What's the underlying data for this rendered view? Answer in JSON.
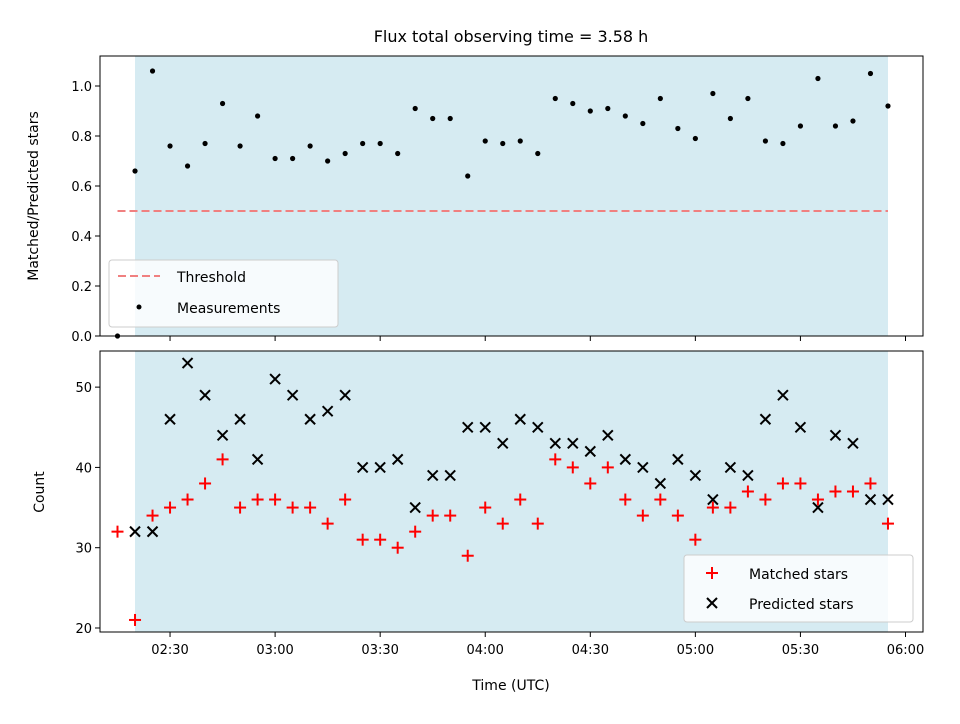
{
  "chart_data": [
    {
      "type": "scatter",
      "title": "Flux total observing time = 3.58 h",
      "xlabel": "",
      "ylabel": "Matched/Predicted stars",
      "ylim": [
        0,
        1.12
      ],
      "yticks": [
        "0.0",
        "0.2",
        "0.4",
        "0.6",
        "0.8",
        "1.0"
      ],
      "ytick_values": [
        0,
        0.2,
        0.4,
        0.6,
        0.8,
        1.0
      ],
      "shaded_x_range": [
        "02:20",
        "05:55"
      ],
      "threshold": {
        "name": "Threshold",
        "value": 0.5,
        "x_range": [
          "02:15",
          "05:55"
        ],
        "color": "#f08080",
        "style": "dashed"
      },
      "series": [
        {
          "name": "Measurements",
          "color": "#000000",
          "marker": "dot",
          "x": [
            "02:15",
            "02:20",
            "02:25",
            "02:30",
            "02:35",
            "02:40",
            "02:45",
            "02:50",
            "02:55",
            "03:00",
            "03:05",
            "03:10",
            "03:15",
            "03:20",
            "03:25",
            "03:30",
            "03:35",
            "03:40",
            "03:45",
            "03:50",
            "03:55",
            "04:00",
            "04:05",
            "04:10",
            "04:15",
            "04:20",
            "04:25",
            "04:30",
            "04:35",
            "04:40",
            "04:45",
            "04:50",
            "04:55",
            "05:00",
            "05:05",
            "05:10",
            "05:15",
            "05:20",
            "05:25",
            "05:30",
            "05:35",
            "05:40",
            "05:45",
            "05:50",
            "05:55"
          ],
          "y": [
            0.0,
            0.66,
            1.06,
            0.76,
            0.68,
            0.77,
            0.93,
            0.76,
            0.88,
            0.71,
            0.71,
            0.76,
            0.7,
            0.73,
            0.77,
            0.77,
            0.73,
            0.91,
            0.87,
            0.87,
            0.64,
            0.78,
            0.77,
            0.78,
            0.73,
            0.95,
            0.93,
            0.9,
            0.91,
            0.88,
            0.85,
            0.95,
            0.83,
            0.79,
            0.97,
            0.87,
            0.95,
            0.78,
            0.77,
            0.84,
            1.03,
            0.84,
            0.86,
            1.05,
            0.92
          ]
        }
      ],
      "legend": {
        "placement": "lower-left",
        "entries": [
          "Threshold",
          "Measurements"
        ]
      }
    },
    {
      "type": "scatter",
      "title": "",
      "xlabel": "Time (UTC)",
      "ylabel": "Count",
      "ylim": [
        19.5,
        54.5
      ],
      "yticks": [
        "20",
        "30",
        "40",
        "50"
      ],
      "ytick_values": [
        20,
        30,
        40,
        50
      ],
      "xlim": [
        "02:10",
        "06:05"
      ],
      "xticks": [
        "02:30",
        "03:00",
        "03:30",
        "04:00",
        "04:30",
        "05:00",
        "05:30",
        "06:00"
      ],
      "shaded_x_range": [
        "02:20",
        "05:55"
      ],
      "series": [
        {
          "name": "Matched stars",
          "color": "#ff0000",
          "marker": "plus",
          "x": [
            "02:15",
            "02:20",
            "02:25",
            "02:30",
            "02:35",
            "02:40",
            "02:45",
            "02:50",
            "02:55",
            "03:00",
            "03:05",
            "03:10",
            "03:15",
            "03:20",
            "03:25",
            "03:30",
            "03:35",
            "03:40",
            "03:45",
            "03:50",
            "03:55",
            "04:00",
            "04:05",
            "04:10",
            "04:15",
            "04:20",
            "04:25",
            "04:30",
            "04:35",
            "04:40",
            "04:45",
            "04:50",
            "04:55",
            "05:00",
            "05:05",
            "05:10",
            "05:15",
            "05:20",
            "05:25",
            "05:30",
            "05:35",
            "05:40",
            "05:45",
            "05:50",
            "05:55"
          ],
          "y": [
            32,
            21,
            34,
            35,
            36,
            38,
            41,
            35,
            36,
            36,
            35,
            35,
            33,
            36,
            31,
            31,
            30,
            32,
            34,
            34,
            29,
            35,
            33,
            36,
            33,
            41,
            40,
            38,
            40,
            36,
            34,
            36,
            34,
            31,
            35,
            35,
            37,
            36,
            38,
            38,
            36,
            37,
            37,
            38,
            33
          ]
        },
        {
          "name": "Predicted stars",
          "color": "#000000",
          "marker": "x",
          "x": [
            "02:20",
            "02:25",
            "02:30",
            "02:35",
            "02:40",
            "02:45",
            "02:50",
            "02:55",
            "03:00",
            "03:05",
            "03:10",
            "03:15",
            "03:20",
            "03:25",
            "03:30",
            "03:35",
            "03:40",
            "03:45",
            "03:50",
            "03:55",
            "04:00",
            "04:05",
            "04:10",
            "04:15",
            "04:20",
            "04:25",
            "04:30",
            "04:35",
            "04:40",
            "04:45",
            "04:50",
            "04:55",
            "05:00",
            "05:05",
            "05:10",
            "05:15",
            "05:20",
            "05:25",
            "05:30",
            "05:35",
            "05:40",
            "05:45",
            "05:50",
            "05:55"
          ],
          "y": [
            32,
            32,
            46,
            53,
            49,
            44,
            46,
            41,
            51,
            49,
            46,
            47,
            49,
            40,
            40,
            41,
            35,
            39,
            39,
            45,
            45,
            43,
            46,
            45,
            43,
            43,
            42,
            44,
            41,
            40,
            38,
            41,
            39,
            36,
            40,
            39,
            46,
            49,
            45,
            35,
            44,
            43,
            36,
            36
          ]
        }
      ],
      "legend": {
        "placement": "lower-right",
        "entries": [
          "Matched stars",
          "Predicted stars"
        ]
      }
    }
  ]
}
